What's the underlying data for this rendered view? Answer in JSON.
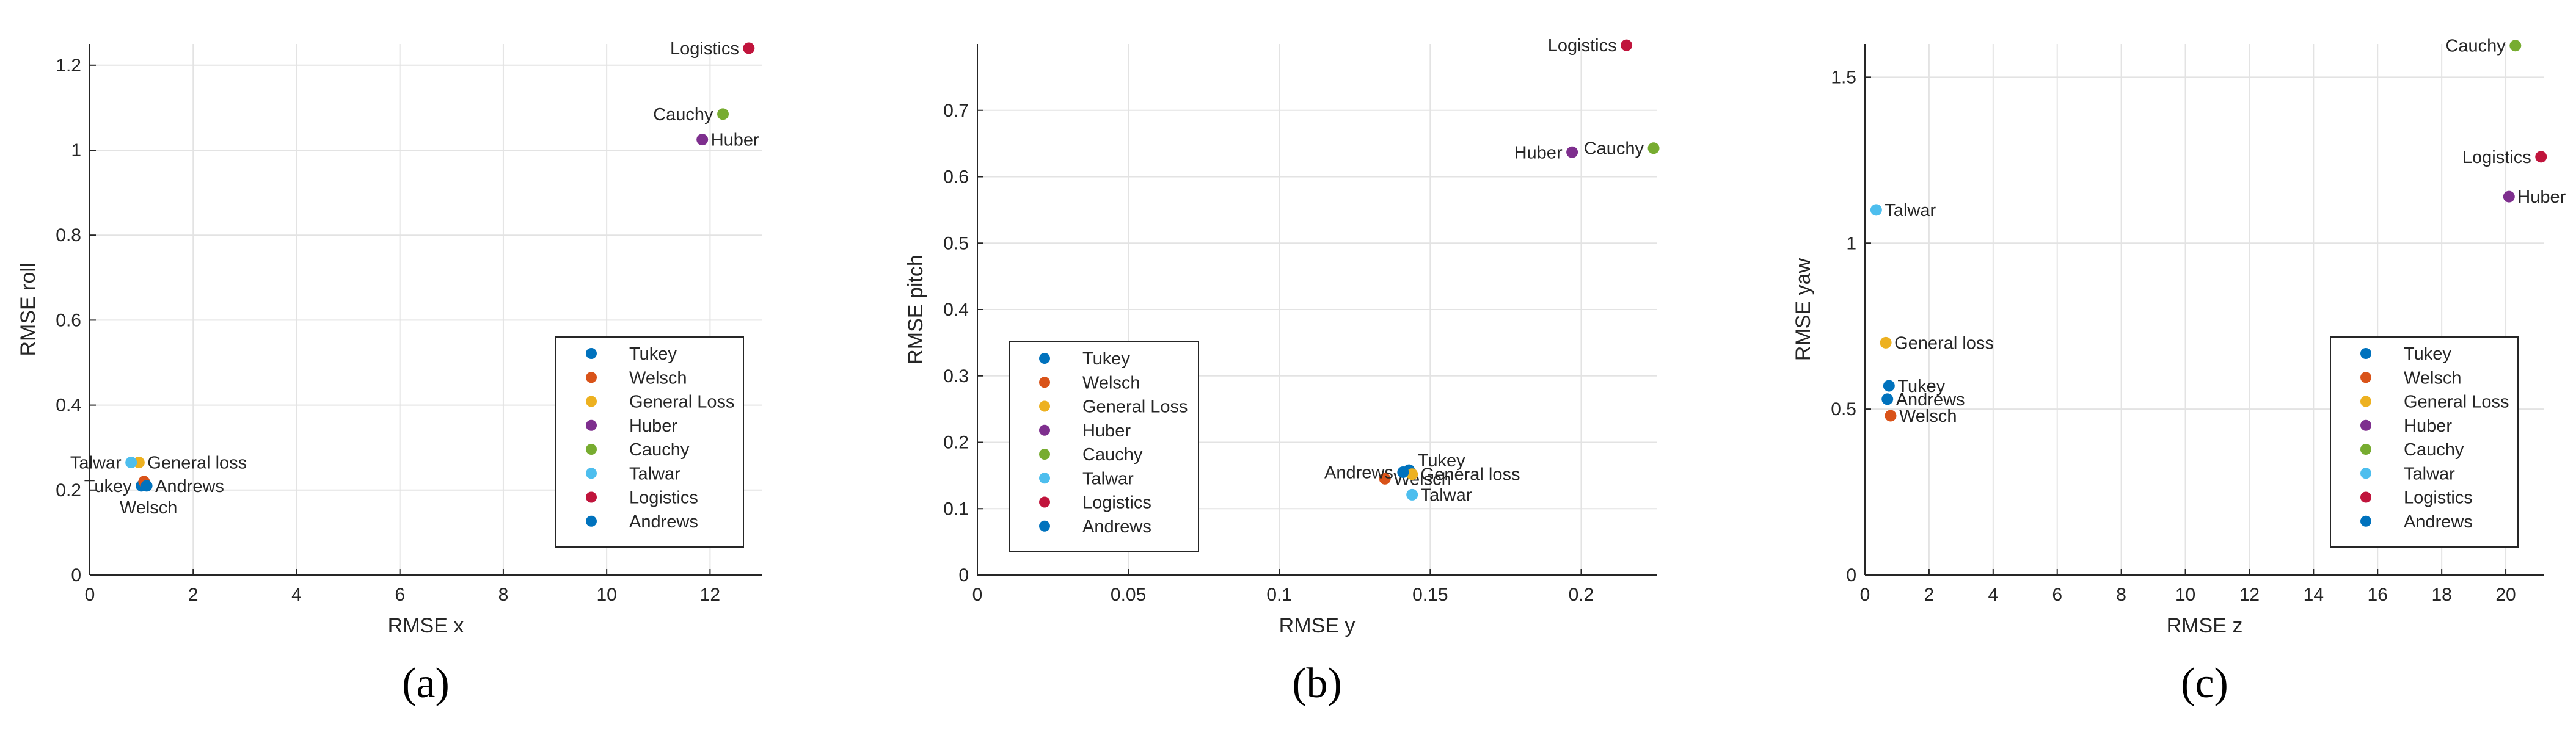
{
  "colors": {
    "Tukey": "#0072bd",
    "Welsch": "#d95319",
    "General Loss": "#edb120",
    "Huber": "#7e2f8e",
    "Cauchy": "#77ac30",
    "Talwar": "#4dbeee",
    "Logistics": "#c0143c",
    "Andrews": "#0072bd"
  },
  "chart_data": [
    {
      "type": "scatter",
      "panel": "(a)",
      "xlabel": "RMSE x",
      "ylabel": "RMSE roll",
      "xlim": [
        0,
        13
      ],
      "ylim": [
        0,
        1.25
      ],
      "xticks": [
        0,
        2,
        4,
        6,
        8,
        10,
        12
      ],
      "xtick_labels": [
        "0",
        "2",
        "4",
        "6",
        "8",
        "10",
        "12"
      ],
      "yticks": [
        0,
        0.2,
        0.4,
        0.6,
        0.8,
        1,
        1.2
      ],
      "ytick_labels": [
        "0",
        "0.2",
        "0.4",
        "0.6",
        "0.8",
        "1",
        "1.2"
      ],
      "grid": true,
      "legend": {
        "position": "bottom-right",
        "entries": [
          "Tukey",
          "Welsch",
          "General Loss",
          "Huber",
          "Cauchy",
          "Talwar",
          "Logistics",
          "Andrews"
        ]
      },
      "points": [
        {
          "series": "Tukey",
          "x": 1.0,
          "y": 0.21,
          "label": "Tukey",
          "label_pos": "left"
        },
        {
          "series": "Welsch",
          "x": 1.05,
          "y": 0.22,
          "label": "Welsch",
          "label_pos": "below-left"
        },
        {
          "series": "General Loss",
          "x": 0.95,
          "y": 0.265,
          "label": "General loss",
          "label_pos": "right"
        },
        {
          "series": "Huber",
          "x": 11.85,
          "y": 1.025,
          "label": "Huber",
          "label_pos": "right"
        },
        {
          "series": "Cauchy",
          "x": 12.25,
          "y": 1.085,
          "label": "Cauchy",
          "label_pos": "left"
        },
        {
          "series": "Talwar",
          "x": 0.8,
          "y": 0.265,
          "label": "Talwar",
          "label_pos": "left"
        },
        {
          "series": "Logistics",
          "x": 12.75,
          "y": 1.24,
          "label": "Logistics",
          "label_pos": "left"
        },
        {
          "series": "Andrews",
          "x": 1.1,
          "y": 0.21,
          "label": "Andrews",
          "label_pos": "right"
        }
      ]
    },
    {
      "type": "scatter",
      "panel": "(b)",
      "xlabel": "RMSE y",
      "ylabel": "RMSE pitch",
      "xlim": [
        0,
        0.225
      ],
      "ylim": [
        0,
        0.8
      ],
      "xticks": [
        0,
        0.05,
        0.1,
        0.15,
        0.2
      ],
      "xtick_labels": [
        "0",
        "0.05",
        "0.1",
        "0.15",
        "0.2"
      ],
      "yticks": [
        0,
        0.1,
        0.2,
        0.3,
        0.4,
        0.5,
        0.6,
        0.7
      ],
      "ytick_labels": [
        "0",
        "0.1",
        "0.2",
        "0.3",
        "0.4",
        "0.5",
        "0.6",
        "0.7"
      ],
      "grid": true,
      "legend": {
        "position": "bottom-left",
        "entries": [
          "Tukey",
          "Welsch",
          "General Loss",
          "Huber",
          "Cauchy",
          "Talwar",
          "Logistics",
          "Andrews"
        ]
      },
      "points": [
        {
          "series": "Tukey",
          "x": 0.143,
          "y": 0.158,
          "label": "Tukey",
          "label_pos": "above-right"
        },
        {
          "series": "Welsch",
          "x": 0.135,
          "y": 0.145,
          "label": "Welsch",
          "label_pos": "right"
        },
        {
          "series": "General Loss",
          "x": 0.144,
          "y": 0.152,
          "label": "General loss",
          "label_pos": "right"
        },
        {
          "series": "Huber",
          "x": 0.197,
          "y": 0.637,
          "label": "Huber",
          "label_pos": "left"
        },
        {
          "series": "Cauchy",
          "x": 0.224,
          "y": 0.643,
          "label": "Cauchy",
          "label_pos": "left"
        },
        {
          "series": "Talwar",
          "x": 0.144,
          "y": 0.121,
          "label": "Talwar",
          "label_pos": "right"
        },
        {
          "series": "Logistics",
          "x": 0.215,
          "y": 0.798,
          "label": "Logistics",
          "label_pos": "left"
        },
        {
          "series": "Andrews",
          "x": 0.141,
          "y": 0.155,
          "label": "Andrews",
          "label_pos": "left"
        }
      ]
    },
    {
      "type": "scatter",
      "panel": "(c)",
      "xlabel": "RMSE z",
      "ylabel": "RMSE yaw",
      "xlim": [
        0,
        21.2
      ],
      "ylim": [
        0,
        1.6
      ],
      "xticks": [
        0,
        2,
        4,
        6,
        8,
        10,
        12,
        14,
        16,
        18,
        20
      ],
      "xtick_labels": [
        "0",
        "2",
        "4",
        "6",
        "8",
        "10",
        "12",
        "14",
        "16",
        "18",
        "20"
      ],
      "yticks": [
        0,
        0.5,
        1,
        1.5
      ],
      "ytick_labels": [
        "0",
        "0.5",
        "1",
        "1.5"
      ],
      "grid": true,
      "legend": {
        "position": "bottom-right",
        "entries": [
          "Tukey",
          "Welsch",
          "General Loss",
          "Huber",
          "Cauchy",
          "Talwar",
          "Logistics",
          "Andrews"
        ]
      },
      "points": [
        {
          "series": "Tukey",
          "x": 0.75,
          "y": 0.57,
          "label": "Tukey",
          "label_pos": "right"
        },
        {
          "series": "Welsch",
          "x": 0.8,
          "y": 0.48,
          "label": "Welsch",
          "label_pos": "right"
        },
        {
          "series": "General Loss",
          "x": 0.65,
          "y": 0.7,
          "label": "General loss",
          "label_pos": "right"
        },
        {
          "series": "Huber",
          "x": 20.1,
          "y": 1.14,
          "label": "Huber",
          "label_pos": "right"
        },
        {
          "series": "Cauchy",
          "x": 20.3,
          "y": 1.595,
          "label": "Cauchy",
          "label_pos": "left"
        },
        {
          "series": "Talwar",
          "x": 0.35,
          "y": 1.1,
          "label": "Talwar",
          "label_pos": "right"
        },
        {
          "series": "Logistics",
          "x": 21.1,
          "y": 1.26,
          "label": "Logistics",
          "label_pos": "left"
        },
        {
          "series": "Andrews",
          "x": 0.7,
          "y": 0.53,
          "label": "Andrews",
          "label_pos": "right"
        }
      ]
    }
  ]
}
